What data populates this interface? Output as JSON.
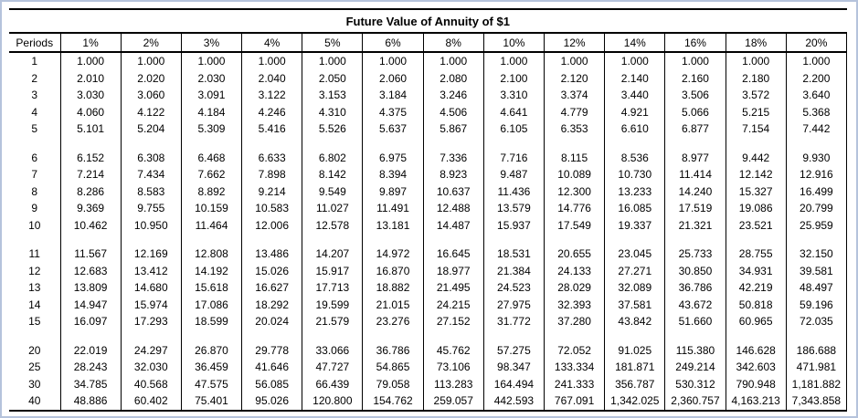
{
  "page": {
    "frame_color": "#b5c3dc",
    "grid_line_color": "#000000",
    "text_color": "#000000"
  },
  "chart_data": {
    "type": "table",
    "title": "Future Value of Annuity of $1",
    "columns": [
      "Periods",
      "1%",
      "2%",
      "3%",
      "4%",
      "5%",
      "6%",
      "8%",
      "10%",
      "12%",
      "14%",
      "16%",
      "18%",
      "20%"
    ],
    "row_groups": [
      [
        [
          "1",
          "1.000",
          "1.000",
          "1.000",
          "1.000",
          "1.000",
          "1.000",
          "1.000",
          "1.000",
          "1.000",
          "1.000",
          "1.000",
          "1.000",
          "1.000"
        ],
        [
          "2",
          "2.010",
          "2.020",
          "2.030",
          "2.040",
          "2.050",
          "2.060",
          "2.080",
          "2.100",
          "2.120",
          "2.140",
          "2.160",
          "2.180",
          "2.200"
        ],
        [
          "3",
          "3.030",
          "3.060",
          "3.091",
          "3.122",
          "3.153",
          "3.184",
          "3.246",
          "3.310",
          "3.374",
          "3.440",
          "3.506",
          "3.572",
          "3.640"
        ],
        [
          "4",
          "4.060",
          "4.122",
          "4.184",
          "4.246",
          "4.310",
          "4.375",
          "4.506",
          "4.641",
          "4.779",
          "4.921",
          "5.066",
          "5.215",
          "5.368"
        ],
        [
          "5",
          "5.101",
          "5.204",
          "5.309",
          "5.416",
          "5.526",
          "5.637",
          "5.867",
          "6.105",
          "6.353",
          "6.610",
          "6.877",
          "7.154",
          "7.442"
        ]
      ],
      [
        [
          "6",
          "6.152",
          "6.308",
          "6.468",
          "6.633",
          "6.802",
          "6.975",
          "7.336",
          "7.716",
          "8.115",
          "8.536",
          "8.977",
          "9.442",
          "9.930"
        ],
        [
          "7",
          "7.214",
          "7.434",
          "7.662",
          "7.898",
          "8.142",
          "8.394",
          "8.923",
          "9.487",
          "10.089",
          "10.730",
          "11.414",
          "12.142",
          "12.916"
        ],
        [
          "8",
          "8.286",
          "8.583",
          "8.892",
          "9.214",
          "9.549",
          "9.897",
          "10.637",
          "11.436",
          "12.300",
          "13.233",
          "14.240",
          "15.327",
          "16.499"
        ],
        [
          "9",
          "9.369",
          "9.755",
          "10.159",
          "10.583",
          "11.027",
          "11.491",
          "12.488",
          "13.579",
          "14.776",
          "16.085",
          "17.519",
          "19.086",
          "20.799"
        ],
        [
          "10",
          "10.462",
          "10.950",
          "11.464",
          "12.006",
          "12.578",
          "13.181",
          "14.487",
          "15.937",
          "17.549",
          "19.337",
          "21.321",
          "23.521",
          "25.959"
        ]
      ],
      [
        [
          "11",
          "11.567",
          "12.169",
          "12.808",
          "13.486",
          "14.207",
          "14.972",
          "16.645",
          "18.531",
          "20.655",
          "23.045",
          "25.733",
          "28.755",
          "32.150"
        ],
        [
          "12",
          "12.683",
          "13.412",
          "14.192",
          "15.026",
          "15.917",
          "16.870",
          "18.977",
          "21.384",
          "24.133",
          "27.271",
          "30.850",
          "34.931",
          "39.581"
        ],
        [
          "13",
          "13.809",
          "14.680",
          "15.618",
          "16.627",
          "17.713",
          "18.882",
          "21.495",
          "24.523",
          "28.029",
          "32.089",
          "36.786",
          "42.219",
          "48.497"
        ],
        [
          "14",
          "14.947",
          "15.974",
          "17.086",
          "18.292",
          "19.599",
          "21.015",
          "24.215",
          "27.975",
          "32.393",
          "37.581",
          "43.672",
          "50.818",
          "59.196"
        ],
        [
          "15",
          "16.097",
          "17.293",
          "18.599",
          "20.024",
          "21.579",
          "23.276",
          "27.152",
          "31.772",
          "37.280",
          "43.842",
          "51.660",
          "60.965",
          "72.035"
        ]
      ],
      [
        [
          "20",
          "22.019",
          "24.297",
          "26.870",
          "29.778",
          "33.066",
          "36.786",
          "45.762",
          "57.275",
          "72.052",
          "91.025",
          "115.380",
          "146.628",
          "186.688"
        ],
        [
          "25",
          "28.243",
          "32.030",
          "36.459",
          "41.646",
          "47.727",
          "54.865",
          "73.106",
          "98.347",
          "133.334",
          "181.871",
          "249.214",
          "342.603",
          "471.981"
        ],
        [
          "30",
          "34.785",
          "40.568",
          "47.575",
          "56.085",
          "66.439",
          "79.058",
          "113.283",
          "164.494",
          "241.333",
          "356.787",
          "530.312",
          "790.948",
          "1,181.882"
        ],
        [
          "40",
          "48.886",
          "60.402",
          "75.401",
          "95.026",
          "120.800",
          "154.762",
          "259.057",
          "442.593",
          "767.091",
          "1,342.025",
          "2,360.757",
          "4,163.213",
          "7,343.858"
        ]
      ]
    ]
  }
}
